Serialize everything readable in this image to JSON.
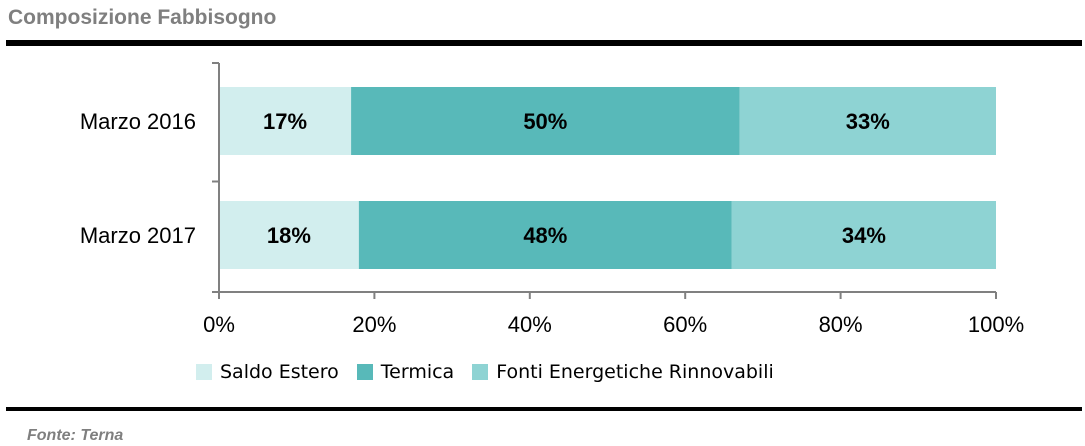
{
  "header": {
    "title": "Composizione Fabbisogno"
  },
  "footer": {
    "source": "Fonte: Terna"
  },
  "chart_data": {
    "type": "bar",
    "orientation": "horizontal",
    "stacked": true,
    "percent_stacked": true,
    "categories": [
      "Marzo 2016",
      "Marzo 2017"
    ],
    "series": [
      {
        "name": "Saldo Estero",
        "values": [
          17,
          18
        ],
        "labels": [
          "17%",
          "18%"
        ],
        "color": "#d2eeee"
      },
      {
        "name": "Termica",
        "values": [
          50,
          48
        ],
        "labels": [
          "50%",
          "48%"
        ],
        "color": "#58b9b9"
      },
      {
        "name": "Fonti Energetiche Rinnovabili",
        "values": [
          33,
          34
        ],
        "labels": [
          "33%",
          "34%"
        ],
        "color": "#8ed3d3"
      }
    ],
    "xlim": [
      0,
      100
    ],
    "xticks": [
      0,
      20,
      40,
      60,
      80,
      100
    ],
    "xtick_labels": [
      "0%",
      "20%",
      "40%",
      "60%",
      "80%",
      "100%"
    ],
    "axis_color": "#808080",
    "grid": false,
    "legend_position": "bottom"
  }
}
